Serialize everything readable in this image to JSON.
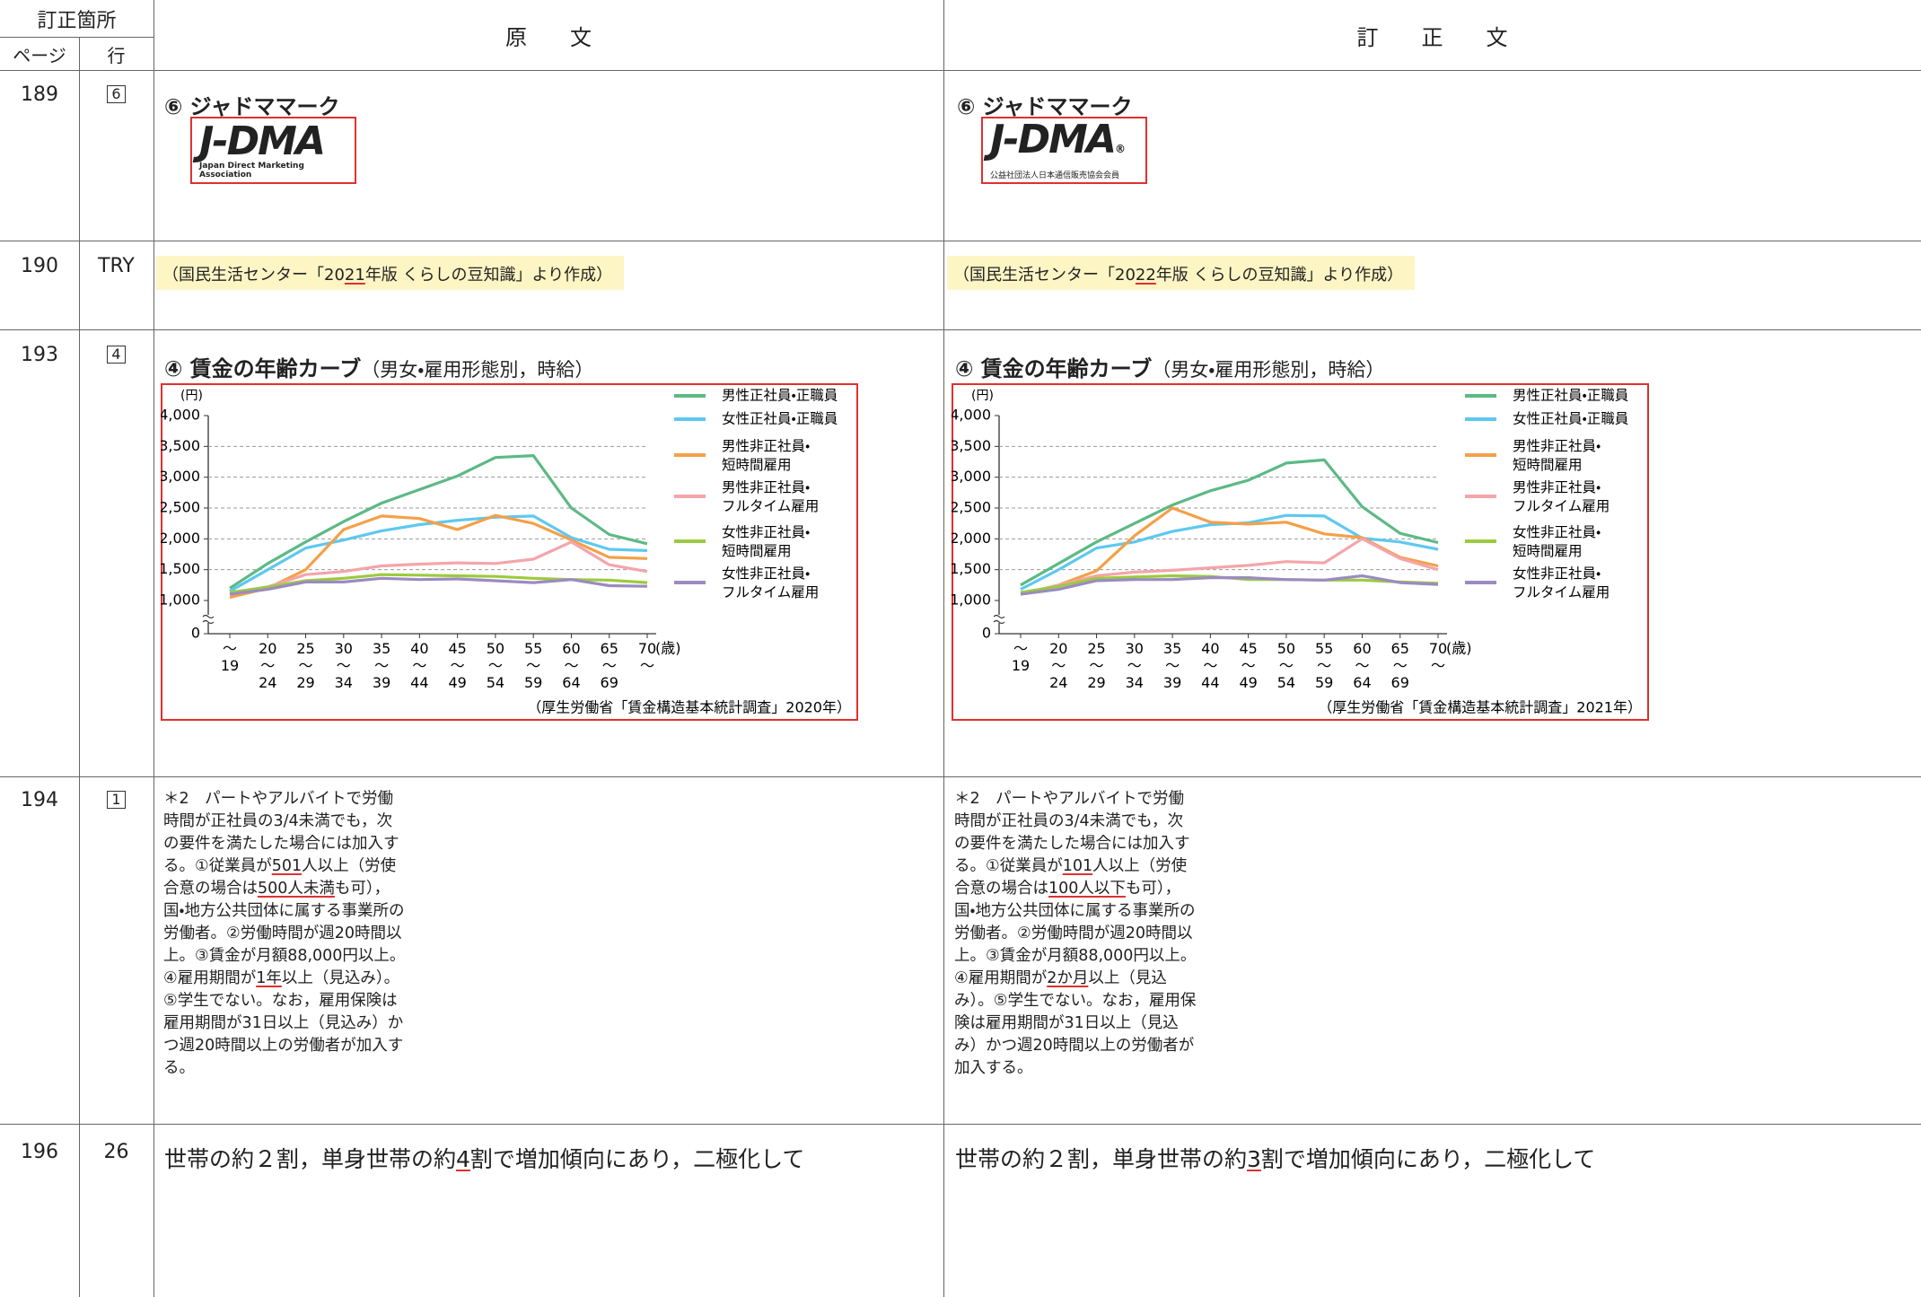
{
  "header": {
    "title": "訂正箇所",
    "page": "ページ",
    "line": "行",
    "original": "原　　文",
    "corrected": "訂　　正　　文"
  },
  "rows": [
    {
      "page": "189",
      "line": "6",
      "boxed": true,
      "original": {
        "heading": "⑥ ジャドママーク",
        "logo": "J-DMA",
        "caption": "Japan Direct Marketing Association"
      },
      "corrected": {
        "heading": "⑥ ジャドママーク",
        "logo": "J-DMA",
        "mark": "®",
        "caption": "公益社団法人日本通信販売協会会員"
      }
    },
    {
      "page": "190",
      "line": "TRY",
      "boxed": false,
      "original": {
        "text": [
          {
            "text": "（国民生活センター「20"
          },
          {
            "text": "21",
            "mark": true
          },
          {
            "text": "年版 くらしの豆知識」より作成）"
          }
        ]
      },
      "corrected": {
        "text": [
          {
            "text": "（国民生活センター「20"
          },
          {
            "text": "22",
            "mark": true
          },
          {
            "text": "年版 くらしの豆知識」より作成）"
          }
        ]
      }
    },
    {
      "page": "193",
      "line": "4",
      "boxed": true,
      "original": {
        "heading": "④ 賃金の年齢カーブ",
        "subheading": "（男女・雇用形態別，時給）",
        "chart": {
          "type": "line",
          "y_label": "(円)",
          "x_label": "(歳)",
          "categories": [
            "〜19",
            "20〜24",
            "25〜29",
            "30〜34",
            "35〜39",
            "40〜44",
            "45〜49",
            "50〜54",
            "55〜59",
            "60〜64",
            "65〜69",
            "70〜"
          ],
          "ylim": [
            1000,
            4000
          ],
          "yticks": [
            0,
            {
              "value": 1000,
              "label": "1,000"
            },
            {
              "value": 1500,
              "label": "1,500"
            },
            {
              "value": 2000,
              "label": "2,000"
            },
            {
              "value": 2500,
              "label": "2,500"
            },
            {
              "value": 3000,
              "label": "3,000"
            },
            {
              "value": 3500,
              "label": "3,500"
            },
            {
              "value": 4000,
              "label": "4,000"
            }
          ],
          "grid": true,
          "series": [
            {
              "name": "男性正社員・正職員",
              "color": "#5db984",
              "values": [
                1200,
                1600,
                1950,
                2280,
                2580,
                2800,
                3020,
                3320,
                3350,
                2500,
                2070,
                1920
              ]
            },
            {
              "name": "女性正社員・正職員",
              "color": "#5ec8ef",
              "values": [
                1150,
                1500,
                1850,
                1980,
                2130,
                2230,
                2300,
                2350,
                2370,
                2020,
                1830,
                1810
              ]
            },
            {
              "name": "男性非正社員・短時間雇用",
              "color": "#f4a048",
              "values": [
                1050,
                1200,
                1500,
                2150,
                2370,
                2330,
                2150,
                2380,
                2250,
                1980,
                1700,
                1680
              ]
            },
            {
              "name": "男性非正社員・フルタイム雇用",
              "color": "#f4a5aa",
              "values": [
                1100,
                1220,
                1420,
                1470,
                1560,
                1590,
                1610,
                1600,
                1670,
                1950,
                1580,
                1470
              ]
            },
            {
              "name": "女性非正社員・短時間雇用",
              "color": "#9bcb3e",
              "values": [
                1130,
                1220,
                1320,
                1360,
                1420,
                1410,
                1400,
                1390,
                1360,
                1340,
                1330,
                1290
              ]
            },
            {
              "name": "女性非正社員・フルタイム雇用",
              "color": "#9c8ac2",
              "values": [
                1100,
                1180,
                1300,
                1300,
                1360,
                1340,
                1350,
                1320,
                1290,
                1340,
                1240,
                1230
              ]
            }
          ],
          "source": "（厚生労働省「賃金構造基本統計調査」2020年）"
        }
      },
      "corrected": {
        "heading": "④ 賃金の年齢カーブ",
        "subheading": "（男女・雇用形態別，時給）",
        "chart": {
          "type": "line",
          "y_label": "(円)",
          "x_label": "(歳)",
          "categories": [
            "〜19",
            "20〜24",
            "25〜29",
            "30〜34",
            "35〜39",
            "40〜44",
            "45〜49",
            "50〜54",
            "55〜59",
            "60〜64",
            "65〜69",
            "70〜"
          ],
          "ylim": [
            1000,
            4000
          ],
          "yticks": [
            0,
            {
              "value": 1000,
              "label": "1,000"
            },
            {
              "value": 1500,
              "label": "1,500"
            },
            {
              "value": 2000,
              "label": "2,000"
            },
            {
              "value": 2500,
              "label": "2,500"
            },
            {
              "value": 3000,
              "label": "3,000"
            },
            {
              "value": 3500,
              "label": "3,500"
            },
            {
              "value": 4000,
              "label": "4,000"
            }
          ],
          "grid": true,
          "series": [
            {
              "name": "男性正社員・正職員",
              "color": "#5db984",
              "values": [
                1250,
                1600,
                1950,
                2250,
                2550,
                2780,
                2950,
                3230,
                3280,
                2520,
                2090,
                1940
              ]
            },
            {
              "name": "女性正社員・正職員",
              "color": "#5ec8ef",
              "values": [
                1180,
                1500,
                1850,
                1950,
                2120,
                2230,
                2260,
                2380,
                2370,
                2010,
                1950,
                1830
              ]
            },
            {
              "name": "男性非正社員・短時間雇用",
              "color": "#f4a048",
              "values": [
                1100,
                1250,
                1480,
                2050,
                2500,
                2270,
                2240,
                2270,
                2080,
                2020,
                1700,
                1560
              ]
            },
            {
              "name": "男性非正社員・フルタイム雇用",
              "color": "#f4a5aa",
              "values": [
                1100,
                1250,
                1400,
                1460,
                1490,
                1530,
                1570,
                1630,
                1610,
                2000,
                1680,
                1500
              ]
            },
            {
              "name": "女性非正社員・短時間雇用",
              "color": "#9bcb3e",
              "values": [
                1130,
                1230,
                1360,
                1380,
                1400,
                1390,
                1340,
                1340,
                1330,
                1330,
                1300,
                1280
              ]
            },
            {
              "name": "女性非正社員・フルタイム雇用",
              "color": "#9c8ac2",
              "values": [
                1100,
                1180,
                1320,
                1340,
                1340,
                1370,
                1370,
                1340,
                1330,
                1400,
                1290,
                1260
              ]
            }
          ],
          "source": "（厚生労働省「賃金構造基本統計調査」2021年）"
        }
      }
    },
    {
      "page": "194",
      "line": "1",
      "boxed": true,
      "original": {
        "text": [
          {
            "text": "＊2　パートやアルバイトで労働時間が正社員の3/4未満でも，次の要件を満たした場合には加入する。①従業員が"
          },
          {
            "text": "501",
            "mark": true
          },
          {
            "text": "人以上（労使合意の場合は"
          },
          {
            "text": "500人未満",
            "mark": true
          },
          {
            "text": "も可），国・地方公共団体に属する事業所の労働者。②労働時間が週20時間以上。③賃金が月額88,000円以上。④雇用期間が"
          },
          {
            "text": "1年",
            "mark": true
          },
          {
            "text": "以上（見込み）。⑤学生でない。なお，雇用保険は雇用期間が31日以上（見込み）かつ週20時間以上の労働者が加入する。"
          }
        ]
      },
      "corrected": {
        "text": [
          {
            "text": "＊2　パートやアルバイトで労働時間が正社員の3/4未満でも，次の要件を満たした場合には加入する。①従業員が"
          },
          {
            "text": "101",
            "mark": true
          },
          {
            "text": "人以上（労使合意の場合は"
          },
          {
            "text": "100人以下",
            "mark": true
          },
          {
            "text": "も可），国・地方公共団体に属する事業所の労働者。②労働時間が週20時間以上。③賃金が月額88,000円以上。④雇用期間が"
          },
          {
            "text": "2か月",
            "mark": true
          },
          {
            "text": "以上（見込み）。⑤学生でない。なお，雇用保険は雇用期間が31日以上（見込み）かつ週20時間以上の労働者が加入する。"
          }
        ]
      }
    },
    {
      "page": "196",
      "line": "26",
      "boxed": false,
      "original": {
        "text": [
          {
            "text": "世帯の約２割，単身世帯の約"
          },
          {
            "text": "4",
            "mark": true
          },
          {
            "text": "割で増加傾向にあり，二極化して"
          }
        ]
      },
      "corrected": {
        "text": [
          {
            "text": "世帯の約２割，単身世帯の約"
          },
          {
            "text": "3",
            "mark": true
          },
          {
            "text": "割で増加傾向にあり，二極化して"
          }
        ]
      }
    }
  ]
}
